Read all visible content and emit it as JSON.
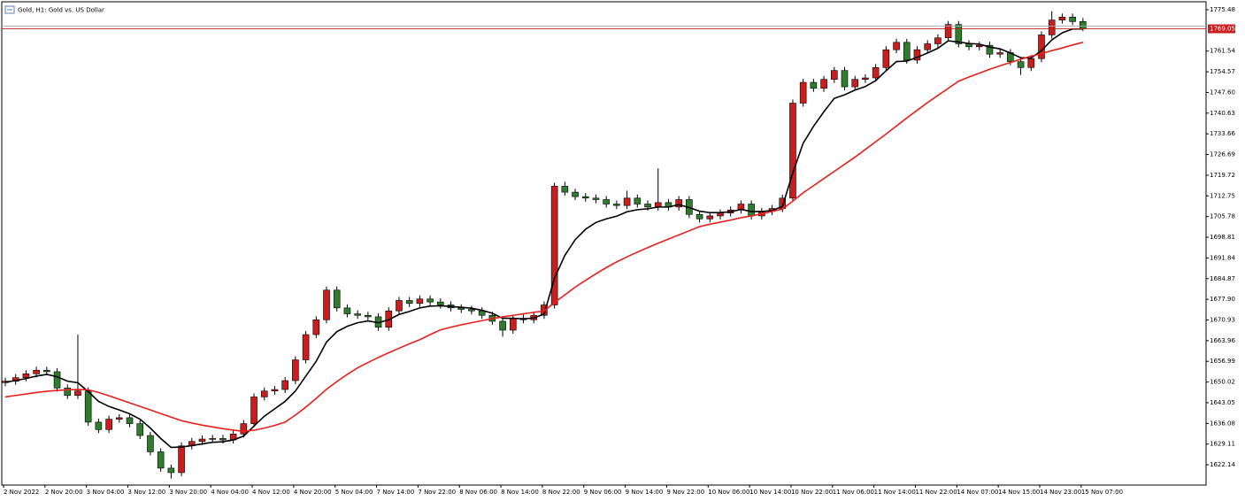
{
  "chart_data": {
    "type": "candlestick",
    "title": "Gold, H1:  Gold vs. US Dollar",
    "categories": [
      "2 Nov 2022",
      null,
      null,
      null,
      "2 Nov 20:00",
      null,
      null,
      null,
      "3 Nov 04:00",
      null,
      null,
      null,
      "3 Nov 12:00",
      null,
      null,
      null,
      "3 Nov 20:00",
      null,
      null,
      null,
      "4 Nov 04:00",
      null,
      null,
      null,
      "4 Nov 12:00",
      null,
      null,
      null,
      "4 Nov 20:00",
      null,
      null,
      null,
      "5 Nov 04:00",
      null,
      null,
      null,
      "7 Nov 14:00",
      null,
      null,
      null,
      "7 Nov 22:00",
      null,
      null,
      null,
      "8 Nov 06:00",
      null,
      null,
      null,
      "8 Nov 14:00",
      null,
      null,
      null,
      "8 Nov 22:00",
      null,
      null,
      null,
      "9 Nov 06:00",
      null,
      null,
      null,
      "9 Nov 14:00",
      null,
      null,
      null,
      "9 Nov 22:00",
      null,
      null,
      null,
      "10 Nov 06:00",
      null,
      null,
      null,
      "10 Nov 14:00",
      null,
      null,
      null,
      "10 Nov 22:00",
      null,
      null,
      null,
      "11 Nov 06:00",
      null,
      null,
      null,
      "11 Nov 14:00",
      null,
      null,
      null,
      "11 Nov 22:00",
      null,
      null,
      null,
      "14 Nov 07:00",
      null,
      null,
      null,
      "14 Nov 15:00",
      null,
      null,
      null,
      "14 Nov 23:00",
      null,
      null,
      null,
      "15 Nov 07:00"
    ],
    "open": [
      1649.8,
      1650.3,
      1651.5,
      1652.8,
      1654.0,
      1653.5,
      1648.0,
      1645.5,
      1647.0,
      1636.5,
      1634.0,
      1637.5,
      1638.0,
      1636.0,
      1632.0,
      1626.5,
      1621.0,
      1619.5,
      1628.5,
      1630.0,
      1630.8,
      1631.0,
      1630.5,
      1632.5,
      1636.0,
      1645.0,
      1647.0,
      1647.5,
      1650.5,
      1657.5,
      1666.0,
      1671.0,
      1681.0,
      1675.0,
      1673.0,
      1672.5,
      1672.0,
      1668.5,
      1674.0,
      1677.5,
      1676.5,
      1678.0,
      1677.0,
      1676.0,
      1675.0,
      1674.5,
      1674.0,
      1672.5,
      1670.5,
      1667.5,
      1671.5,
      1671.0,
      1672.5,
      1676.0,
      1716.0,
      1714.0,
      1712.5,
      1712.0,
      1711.5,
      1710.0,
      1709.5,
      1712.0,
      1710.0,
      1709.0,
      1710.5,
      1709.0,
      1711.5,
      1706.5,
      1705.0,
      1706.0,
      1707.0,
      1708.0,
      1710.0,
      1706.0,
      1707.5,
      1708.5,
      1712.0,
      1744.0,
      1751.0,
      1749.0,
      1752.0,
      1755.0,
      1749.5,
      1752.0,
      1752.5,
      1756.0,
      1762.0,
      1764.5,
      1758.5,
      1762.0,
      1764.0,
      1766.0,
      1770.5,
      1764.0,
      1763.0,
      1763.5,
      1760.5,
      1761.0,
      1758.0,
      1756.0,
      1759.0,
      1767.0,
      1772.0,
      1773.0,
      1771.5
    ],
    "high": [
      1651.5,
      1652.7,
      1654.0,
      1655.2,
      1655.2,
      1654.7,
      1649.2,
      1666.0,
      1648.2,
      1637.7,
      1638.7,
      1639.2,
      1639.2,
      1637.2,
      1633.2,
      1627.7,
      1622.2,
      1629.7,
      1631.2,
      1632.0,
      1632.2,
      1632.2,
      1633.7,
      1637.2,
      1646.2,
      1648.2,
      1648.7,
      1651.7,
      1658.7,
      1667.2,
      1672.2,
      1682.2,
      1682.2,
      1676.2,
      1674.2,
      1673.7,
      1673.2,
      1675.2,
      1678.7,
      1678.7,
      1679.2,
      1679.2,
      1678.2,
      1677.2,
      1676.2,
      1675.7,
      1675.2,
      1673.7,
      1671.7,
      1672.7,
      1672.7,
      1673.7,
      1677.2,
      1717.2,
      1717.5,
      1715.2,
      1713.7,
      1713.2,
      1712.7,
      1711.2,
      1714.5,
      1713.2,
      1711.2,
      1722.0,
      1711.7,
      1712.7,
      1712.7,
      1707.7,
      1707.2,
      1708.2,
      1709.2,
      1711.2,
      1711.2,
      1708.7,
      1709.7,
      1713.2,
      1745.2,
      1752.2,
      1752.2,
      1753.2,
      1756.2,
      1756.2,
      1753.2,
      1753.7,
      1757.2,
      1763.2,
      1765.7,
      1765.7,
      1763.2,
      1765.2,
      1767.2,
      1771.7,
      1771.7,
      1765.2,
      1764.7,
      1764.7,
      1762.2,
      1762.2,
      1759.2,
      1760.2,
      1768.2,
      1775.0,
      1774.2,
      1774.2,
      1772.7
    ],
    "low": [
      1648.6,
      1649.1,
      1650.3,
      1651.6,
      1652.3,
      1646.8,
      1644.3,
      1644.3,
      1635.3,
      1632.8,
      1632.8,
      1636.3,
      1634.8,
      1630.8,
      1625.3,
      1619.8,
      1617.5,
      1618.3,
      1627.3,
      1628.8,
      1629.6,
      1629.3,
      1629.3,
      1631.3,
      1634.8,
      1643.8,
      1645.8,
      1646.3,
      1649.3,
      1656.3,
      1664.8,
      1669.8,
      1673.8,
      1671.8,
      1671.3,
      1670.8,
      1667.3,
      1667.3,
      1672.8,
      1675.3,
      1675.3,
      1675.8,
      1674.8,
      1673.8,
      1673.3,
      1672.8,
      1671.3,
      1669.3,
      1665.3,
      1666.3,
      1669.8,
      1669.8,
      1671.3,
      1674.8,
      1712.8,
      1711.3,
      1710.8,
      1710.3,
      1708.8,
      1708.3,
      1708.3,
      1708.8,
      1707.8,
      1707.8,
      1707.8,
      1707.8,
      1705.3,
      1703.8,
      1703.8,
      1704.8,
      1705.8,
      1706.8,
      1704.8,
      1704.8,
      1706.3,
      1707.3,
      1710.8,
      1742.8,
      1747.8,
      1747.8,
      1750.8,
      1748.3,
      1748.3,
      1750.8,
      1751.3,
      1754.8,
      1760.8,
      1757.3,
      1757.3,
      1760.8,
      1762.8,
      1764.8,
      1762.8,
      1761.8,
      1761.8,
      1759.3,
      1759.3,
      1756.8,
      1753.5,
      1754.8,
      1757.8,
      1765.8,
      1770.8,
      1770.3,
      1768.3
    ],
    "close": [
      1650.3,
      1651.5,
      1652.8,
      1654.0,
      1653.5,
      1648.0,
      1645.5,
      1647.0,
      1636.5,
      1634.0,
      1637.5,
      1638.0,
      1636.0,
      1632.0,
      1626.5,
      1621.0,
      1619.5,
      1628.5,
      1630.0,
      1630.8,
      1631.0,
      1630.5,
      1632.5,
      1636.0,
      1645.0,
      1647.0,
      1647.5,
      1650.5,
      1657.5,
      1666.0,
      1671.0,
      1681.0,
      1675.0,
      1673.0,
      1672.5,
      1672.0,
      1668.5,
      1674.0,
      1677.5,
      1676.5,
      1678.0,
      1677.0,
      1676.0,
      1675.0,
      1674.5,
      1674.0,
      1672.5,
      1670.5,
      1667.5,
      1671.5,
      1671.0,
      1672.5,
      1676.0,
      1716.0,
      1714.0,
      1712.5,
      1712.0,
      1711.5,
      1710.0,
      1709.5,
      1712.0,
      1710.0,
      1709.0,
      1710.5,
      1709.0,
      1711.5,
      1706.5,
      1705.0,
      1706.0,
      1707.0,
      1708.0,
      1710.0,
      1706.0,
      1707.5,
      1708.5,
      1712.0,
      1744.0,
      1751.0,
      1749.0,
      1752.0,
      1755.0,
      1749.5,
      1752.0,
      1752.5,
      1756.0,
      1762.0,
      1764.5,
      1758.5,
      1762.0,
      1764.0,
      1766.0,
      1770.5,
      1764.0,
      1763.0,
      1763.5,
      1760.5,
      1761.0,
      1758.0,
      1756.0,
      1759.0,
      1767.0,
      1772.0,
      1773.0,
      1771.5,
      1769.05
    ],
    "up_color": "#c81e1e",
    "down_color": "#2e7d2e",
    "lines": [
      {
        "color": "#000000",
        "values": [
          1650.0,
          1650.5,
          1651.2,
          1652.0,
          1652.6,
          1651.8,
          1650.3,
          1649.8,
          1646.8,
          1643.5,
          1641.8,
          1640.6,
          1639.3,
          1637.5,
          1634.5,
          1631.0,
          1628.0,
          1628.1,
          1628.6,
          1629.2,
          1629.7,
          1629.9,
          1630.5,
          1631.8,
          1635.2,
          1638.5,
          1641.0,
          1643.5,
          1647.0,
          1652.0,
          1657.0,
          1663.5,
          1667.0,
          1668.8,
          1670.0,
          1670.6,
          1670.0,
          1671.0,
          1672.8,
          1673.8,
          1675.0,
          1675.6,
          1675.7,
          1675.5,
          1675.2,
          1674.9,
          1674.2,
          1673.2,
          1671.5,
          1671.5,
          1671.3,
          1671.6,
          1672.9,
          1685.0,
          1692.7,
          1698.0,
          1701.5,
          1703.8,
          1705.0,
          1705.9,
          1707.4,
          1708.1,
          1708.4,
          1709.0,
          1709.0,
          1709.8,
          1708.8,
          1707.6,
          1707.1,
          1707.1,
          1707.4,
          1708.2,
          1707.5,
          1707.5,
          1707.8,
          1709.2,
          1720.5,
          1730.5,
          1736.2,
          1741.1,
          1745.6,
          1746.8,
          1748.4,
          1749.6,
          1751.6,
          1754.9,
          1758.0,
          1758.2,
          1759.4,
          1760.9,
          1762.5,
          1765.0,
          1764.6,
          1764.1,
          1763.9,
          1762.9,
          1762.3,
          1760.9,
          1759.3,
          1759.2,
          1761.7,
          1765.3,
          1767.7,
          1769.0,
          1769.0
        ]
      },
      {
        "color": "#e8201c",
        "values": [
          1645.0,
          1645.5,
          1646.0,
          1646.5,
          1646.9,
          1647.2,
          1647.4,
          1647.5,
          1647.4,
          1646.5,
          1645.4,
          1644.2,
          1643.0,
          1641.8,
          1640.6,
          1639.4,
          1638.2,
          1637.0,
          1636.2,
          1635.5,
          1634.9,
          1634.3,
          1633.8,
          1633.4,
          1633.8,
          1634.5,
          1635.4,
          1636.5,
          1638.9,
          1641.6,
          1644.5,
          1647.6,
          1650.2,
          1652.6,
          1654.8,
          1656.6,
          1658.3,
          1659.9,
          1661.4,
          1662.9,
          1664.3,
          1666.0,
          1667.6,
          1668.5,
          1669.3,
          1670.0,
          1670.7,
          1671.4,
          1672.0,
          1672.5,
          1673.0,
          1673.5,
          1674.0,
          1676.8,
          1679.4,
          1682.0,
          1684.3,
          1686.5,
          1688.6,
          1690.5,
          1692.2,
          1693.8,
          1695.3,
          1696.8,
          1698.2,
          1699.6,
          1701.0,
          1702.4,
          1703.2,
          1703.9,
          1704.6,
          1705.4,
          1706.0,
          1706.7,
          1707.5,
          1708.3,
          1711.0,
          1713.8,
          1716.2,
          1718.6,
          1721.0,
          1723.4,
          1725.8,
          1728.4,
          1731.0,
          1733.6,
          1736.3,
          1739.0,
          1741.6,
          1744.2,
          1746.6,
          1749.0,
          1751.4,
          1752.8,
          1754.1,
          1755.4,
          1756.6,
          1757.7,
          1758.8,
          1759.8,
          1760.7,
          1761.7,
          1762.6,
          1763.6,
          1764.5
        ]
      }
    ],
    "ylim": [
      1615.3,
      1778.16
    ],
    "yticks": [
      1775.48,
      1761.54,
      1754.57,
      {
        "value": 1747.6,
        "label": "1747.60"
      },
      1740.63,
      1733.66,
      1726.69,
      1719.72,
      1712.75,
      1705.78,
      1698.81,
      1691.84,
      1684.87,
      {
        "value": 1677.9,
        "label": "1677.90"
      },
      1670.93,
      1663.96,
      1656.99,
      1650.02,
      1643.05,
      1636.08,
      1629.11,
      1622.14
    ],
    "price_color": "#c81e1e"
  }
}
